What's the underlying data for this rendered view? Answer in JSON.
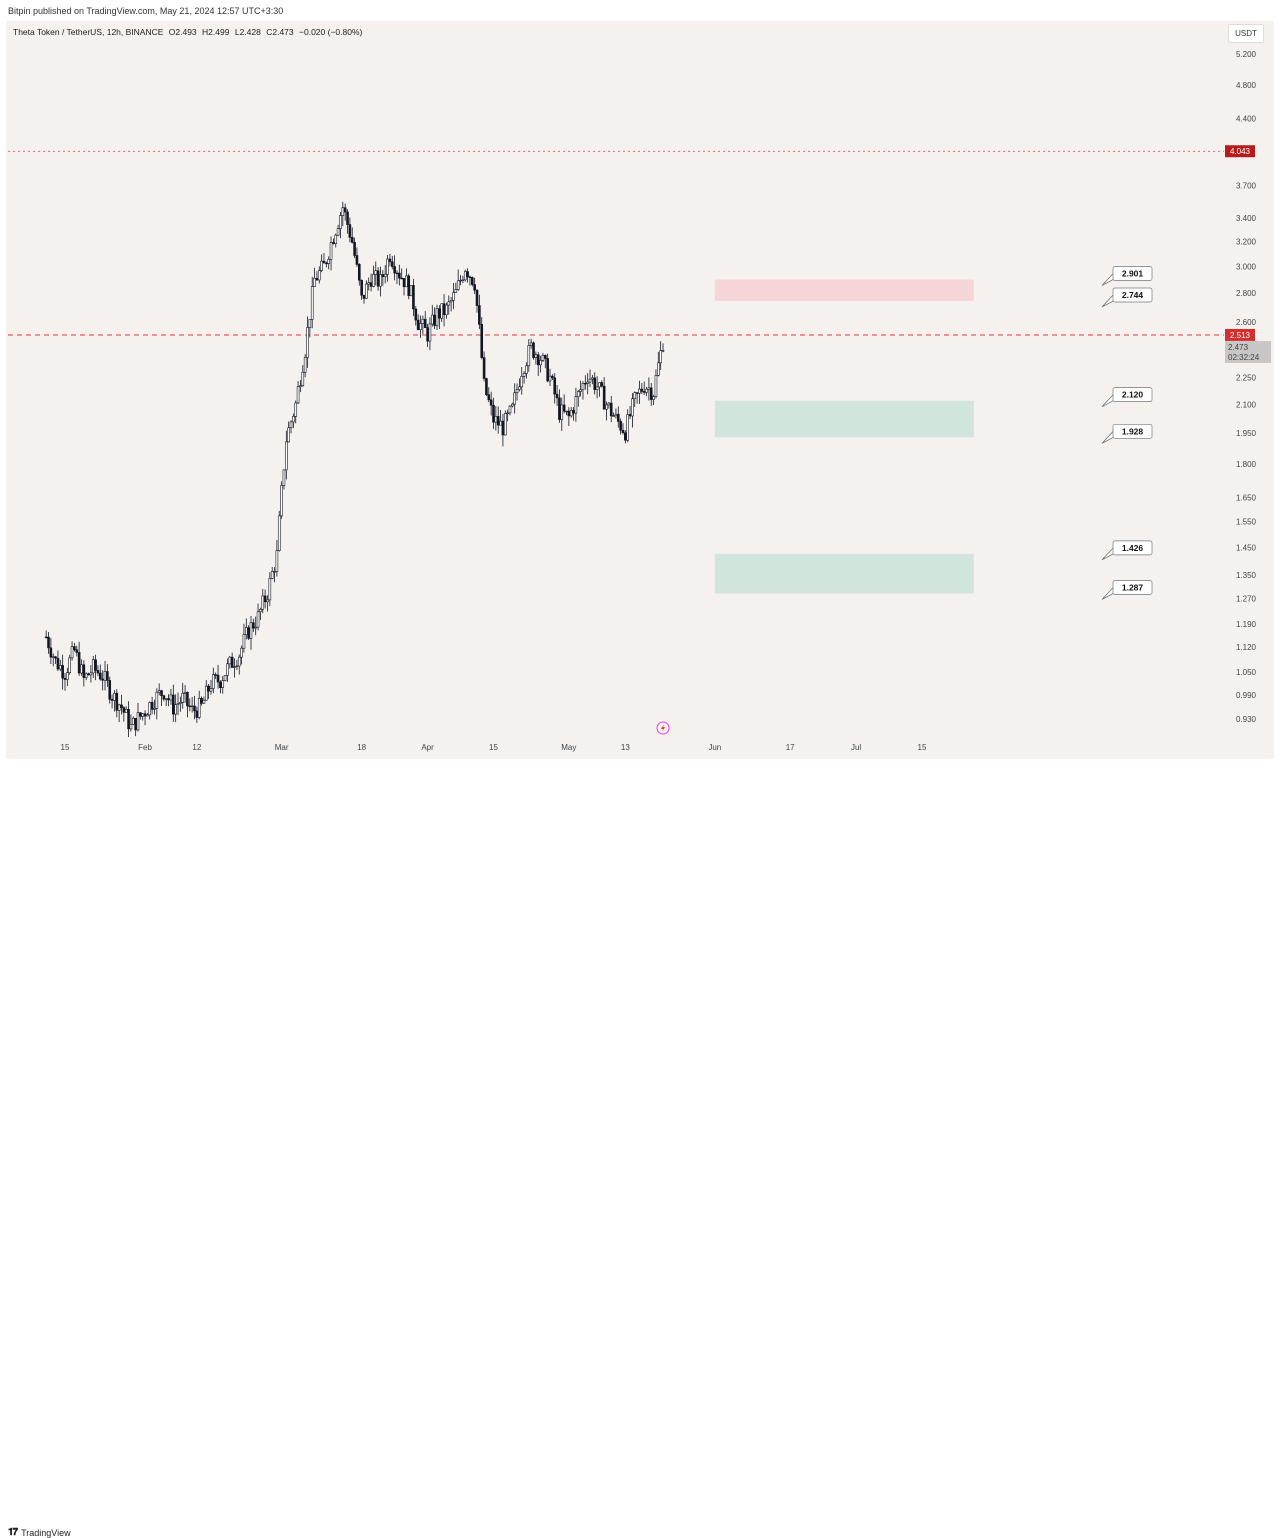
{
  "header": {
    "published_text": "Bitpin published on TradingView.com, May 21, 2024 12:57 UTC+3:30"
  },
  "symbol": {
    "name": "Theta Token / TetherUS, 12h, BINANCE",
    "open": "O2.493",
    "high": "H2.499",
    "low": "L2.428",
    "close": "C2.473",
    "change": "−0.020 (−0.80%)"
  },
  "currency_label": "USDT",
  "footer": {
    "brand": "TradingView"
  },
  "colors": {
    "background": "#f4f1ee",
    "candle": "#131722",
    "resistance_line": "#e53935",
    "price_tag_red": "#d32f2f",
    "price_tag_dark": "#b71c1c",
    "sell_zone": "#f6d5d8",
    "buy_zone": "#d2e5dc"
  },
  "chart_data": {
    "type": "candlestick",
    "scale": "log",
    "y_axis_ticks": [
      "5.200",
      "4.800",
      "4.400",
      "4.043",
      "3.700",
      "3.400",
      "3.200",
      "3.000",
      "2.800",
      "2.600",
      "2.513",
      "2.473",
      "2.250",
      "2.100",
      "1.950",
      "1.800",
      "1.650",
      "1.550",
      "1.450",
      "1.350",
      "1.270",
      "1.190",
      "1.120",
      "1.050",
      "0.990",
      "0.930"
    ],
    "y_tick_values": [
      5.2,
      4.8,
      4.4,
      3.7,
      3.4,
      3.2,
      3.0,
      2.8,
      2.6,
      2.25,
      2.1,
      1.95,
      1.8,
      1.65,
      1.55,
      1.45,
      1.35,
      1.27,
      1.19,
      1.12,
      1.05,
      0.99,
      0.93
    ],
    "x_axis_ticks": [
      {
        "date": "2024-01-15",
        "label": "15"
      },
      {
        "date": "2024-02-01",
        "label": "Feb"
      },
      {
        "date": "2024-02-12",
        "label": "12"
      },
      {
        "date": "2024-03-01",
        "label": "Mar"
      },
      {
        "date": "2024-03-18",
        "label": "18"
      },
      {
        "date": "2024-04-01",
        "label": "Apr"
      },
      {
        "date": "2024-04-15",
        "label": "15"
      },
      {
        "date": "2024-05-01",
        "label": "May"
      },
      {
        "date": "2024-05-13",
        "label": "13"
      },
      {
        "date": "2024-06-01",
        "label": "Jun"
      },
      {
        "date": "2024-06-17",
        "label": "17"
      },
      {
        "date": "2024-07-01",
        "label": "Jul"
      },
      {
        "date": "2024-07-15",
        "label": "15"
      }
    ],
    "price_path": [
      [
        "2024-01-11",
        1.15
      ],
      [
        "2024-01-13",
        1.08
      ],
      [
        "2024-01-15",
        1.05
      ],
      [
        "2024-01-17",
        1.11
      ],
      [
        "2024-01-19",
        1.03
      ],
      [
        "2024-01-21",
        1.06
      ],
      [
        "2024-01-23",
        1.04
      ],
      [
        "2024-01-25",
        0.99
      ],
      [
        "2024-01-27",
        0.96
      ],
      [
        "2024-01-29",
        0.91
      ],
      [
        "2024-02-01",
        0.95
      ],
      [
        "2024-02-03",
        0.98
      ],
      [
        "2024-02-05",
        1.0
      ],
      [
        "2024-02-07",
        0.96
      ],
      [
        "2024-02-09",
        0.98
      ],
      [
        "2024-02-11",
        0.95
      ],
      [
        "2024-02-13",
        0.96
      ],
      [
        "2024-02-15",
        1.02
      ],
      [
        "2024-02-17",
        1.03
      ],
      [
        "2024-02-19",
        1.07
      ],
      [
        "2024-02-21",
        1.1
      ],
      [
        "2024-02-23",
        1.17
      ],
      [
        "2024-02-25",
        1.21
      ],
      [
        "2024-02-27",
        1.29
      ],
      [
        "2024-02-29",
        1.42
      ],
      [
        "2024-03-02",
        1.92
      ],
      [
        "2024-03-04",
        2.1
      ],
      [
        "2024-03-06",
        2.42
      ],
      [
        "2024-03-08",
        2.9
      ],
      [
        "2024-03-10",
        3.0
      ],
      [
        "2024-03-12",
        3.25
      ],
      [
        "2024-03-14",
        3.5
      ],
      [
        "2024-03-16",
        3.2
      ],
      [
        "2024-03-18",
        2.75
      ],
      [
        "2024-03-20",
        2.92
      ],
      [
        "2024-03-22",
        2.88
      ],
      [
        "2024-03-24",
        3.1
      ],
      [
        "2024-03-26",
        2.95
      ],
      [
        "2024-03-28",
        2.85
      ],
      [
        "2024-03-30",
        2.6
      ],
      [
        "2024-04-01",
        2.52
      ],
      [
        "2024-04-03",
        2.65
      ],
      [
        "2024-04-05",
        2.68
      ],
      [
        "2024-04-07",
        2.8
      ],
      [
        "2024-04-09",
        3.0
      ],
      [
        "2024-04-11",
        2.88
      ],
      [
        "2024-04-13",
        2.2
      ],
      [
        "2024-04-15",
        2.02
      ],
      [
        "2024-04-17",
        1.98
      ],
      [
        "2024-04-19",
        2.07
      ],
      [
        "2024-04-21",
        2.3
      ],
      [
        "2024-04-23",
        2.43
      ],
      [
        "2024-04-25",
        2.37
      ],
      [
        "2024-04-27",
        2.25
      ],
      [
        "2024-04-29",
        2.06
      ],
      [
        "2024-05-01",
        2.03
      ],
      [
        "2024-05-03",
        2.15
      ],
      [
        "2024-05-05",
        2.27
      ],
      [
        "2024-05-07",
        2.2
      ],
      [
        "2024-05-09",
        2.1
      ],
      [
        "2024-05-11",
        2.02
      ],
      [
        "2024-05-13",
        1.96
      ],
      [
        "2024-05-15",
        2.12
      ],
      [
        "2024-05-17",
        2.21
      ],
      [
        "2024-05-19",
        2.17
      ],
      [
        "2024-05-21",
        2.473
      ]
    ],
    "last_date": "2024-05-21",
    "resistance_line": 4.043,
    "current_line": 2.513,
    "last_price": 2.473,
    "countdown": "02:32:24",
    "zones": [
      {
        "name": "sell-zone",
        "top": 2.901,
        "bottom": 2.744,
        "start": "2024-06-01",
        "end": "2024-07-26",
        "color": "#f6d5d8",
        "labels": [
          "2.901",
          "2.744"
        ]
      },
      {
        "name": "buy-zone-1",
        "top": 2.12,
        "bottom": 1.928,
        "start": "2024-06-01",
        "end": "2024-07-26",
        "color": "#d2e5dc",
        "labels": [
          "2.120",
          "1.928"
        ]
      },
      {
        "name": "buy-zone-2",
        "top": 1.426,
        "bottom": 1.287,
        "start": "2024-06-01",
        "end": "2024-07-26",
        "color": "#d2e5dc",
        "labels": [
          "1.426",
          "1.287"
        ]
      }
    ]
  }
}
